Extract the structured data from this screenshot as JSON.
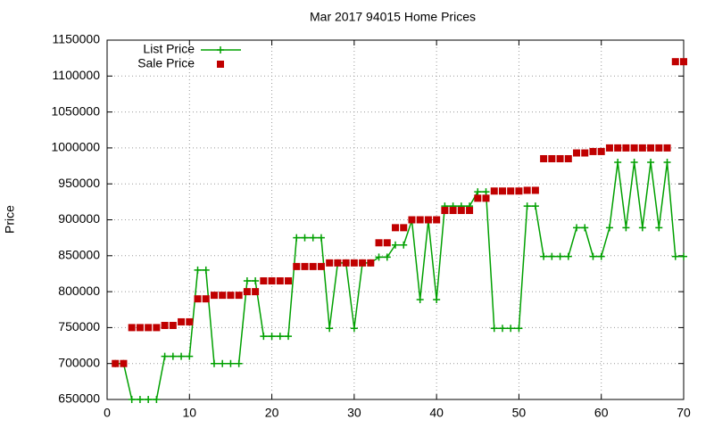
{
  "chart_data": {
    "type": "line",
    "title": "Mar 2017 94015 Home Prices",
    "y_label": "Price",
    "x": [
      1,
      2,
      3,
      4,
      5,
      6,
      7,
      8,
      9,
      10,
      11,
      12,
      13,
      14,
      15,
      16,
      17,
      18,
      19,
      20,
      21,
      22,
      23,
      24,
      25,
      26,
      27,
      28,
      29,
      30,
      31,
      32,
      33,
      34,
      35,
      36,
      37,
      38,
      39,
      40,
      41,
      42,
      43,
      44,
      45,
      46,
      47,
      48,
      49,
      50,
      51,
      52,
      53,
      54,
      55,
      56,
      57,
      58,
      59,
      60,
      61,
      62,
      63,
      64,
      65,
      66,
      67,
      68,
      69,
      70
    ],
    "series": [
      {
        "name": "List Price",
        "color": "#00a000",
        "line": true,
        "marker": "plus",
        "values": [
          700000,
          700000,
          650000,
          650000,
          650000,
          650000,
          710000,
          710000,
          710000,
          710000,
          830000,
          830000,
          700000,
          700000,
          700000,
          700000,
          815000,
          815000,
          738000,
          738000,
          738000,
          738000,
          875000,
          875000,
          875000,
          875000,
          749000,
          840000,
          840000,
          749000,
          840000,
          840000,
          848000,
          848000,
          865000,
          865000,
          899000,
          789000,
          899000,
          789000,
          919000,
          919000,
          919000,
          919000,
          939000,
          939000,
          749000,
          749000,
          749000,
          749000,
          919000,
          919000,
          849000,
          849000,
          849000,
          849000,
          889000,
          889000,
          849000,
          849000,
          889000,
          980000,
          889000,
          980000,
          889000,
          980000,
          889000,
          980000,
          849000,
          849000
        ]
      },
      {
        "name": "Sale Price",
        "color": "#c00000",
        "line": false,
        "marker": "square",
        "values": [
          700000,
          700000,
          750000,
          750000,
          750000,
          750000,
          753000,
          753000,
          758000,
          758000,
          790000,
          790000,
          795000,
          795000,
          795000,
          795000,
          800000,
          800000,
          815000,
          815000,
          815000,
          815000,
          835000,
          835000,
          835000,
          835000,
          840000,
          840000,
          840000,
          840000,
          840000,
          840000,
          868000,
          868000,
          889000,
          889000,
          900000,
          900000,
          900000,
          900000,
          913000,
          913000,
          913000,
          913000,
          930000,
          930000,
          940000,
          940000,
          940000,
          940000,
          941000,
          941000,
          985000,
          985000,
          985000,
          985000,
          993000,
          993000,
          995000,
          995000,
          1000000,
          1000000,
          1000000,
          1000000,
          1000000,
          1000000,
          1000000,
          1000000,
          1120000,
          1120000
        ]
      }
    ],
    "xlim": [
      0,
      70
    ],
    "xticks": [
      0,
      10,
      20,
      30,
      40,
      50,
      60,
      70
    ],
    "ylim": [
      650000,
      1150000
    ],
    "yticks": [
      650000,
      700000,
      750000,
      800000,
      850000,
      900000,
      950000,
      1000000,
      1050000,
      1100000,
      1150000
    ],
    "grid": true,
    "legend": "top-left"
  }
}
